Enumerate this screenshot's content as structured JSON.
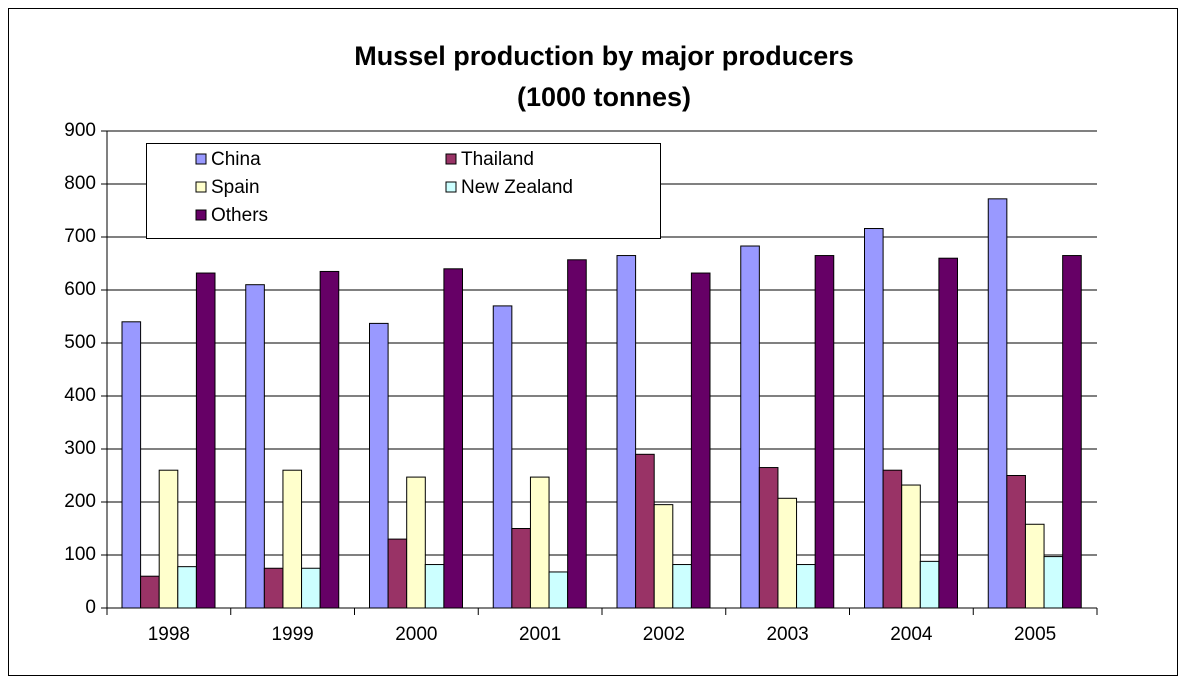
{
  "chart_data": {
    "type": "bar",
    "title": [
      "Mussel production by major producers",
      "(1000 tonnes)"
    ],
    "categories": [
      "1998",
      "1999",
      "2000",
      "2001",
      "2002",
      "2003",
      "2004",
      "2005"
    ],
    "series": [
      {
        "name": "China",
        "color": "#9999ff",
        "values": [
          540,
          610,
          537,
          570,
          665,
          683,
          716,
          772
        ]
      },
      {
        "name": "Thailand",
        "color": "#993366",
        "values": [
          60,
          75,
          130,
          150,
          290,
          265,
          260,
          250
        ]
      },
      {
        "name": "Spain",
        "color": "#ffffcc",
        "values": [
          260,
          260,
          247,
          247,
          195,
          207,
          232,
          158
        ]
      },
      {
        "name": "New Zealand",
        "color": "#ccffff",
        "values": [
          78,
          75,
          82,
          68,
          82,
          82,
          88,
          97
        ]
      },
      {
        "name": "Others",
        "color": "#660066",
        "values": [
          632,
          635,
          640,
          657,
          632,
          665,
          660,
          665
        ]
      }
    ],
    "ylim": [
      0,
      900
    ],
    "yticks": [
      0,
      100,
      200,
      300,
      400,
      500,
      600,
      700,
      800,
      900
    ],
    "grid": true,
    "legend": "top-left"
  }
}
